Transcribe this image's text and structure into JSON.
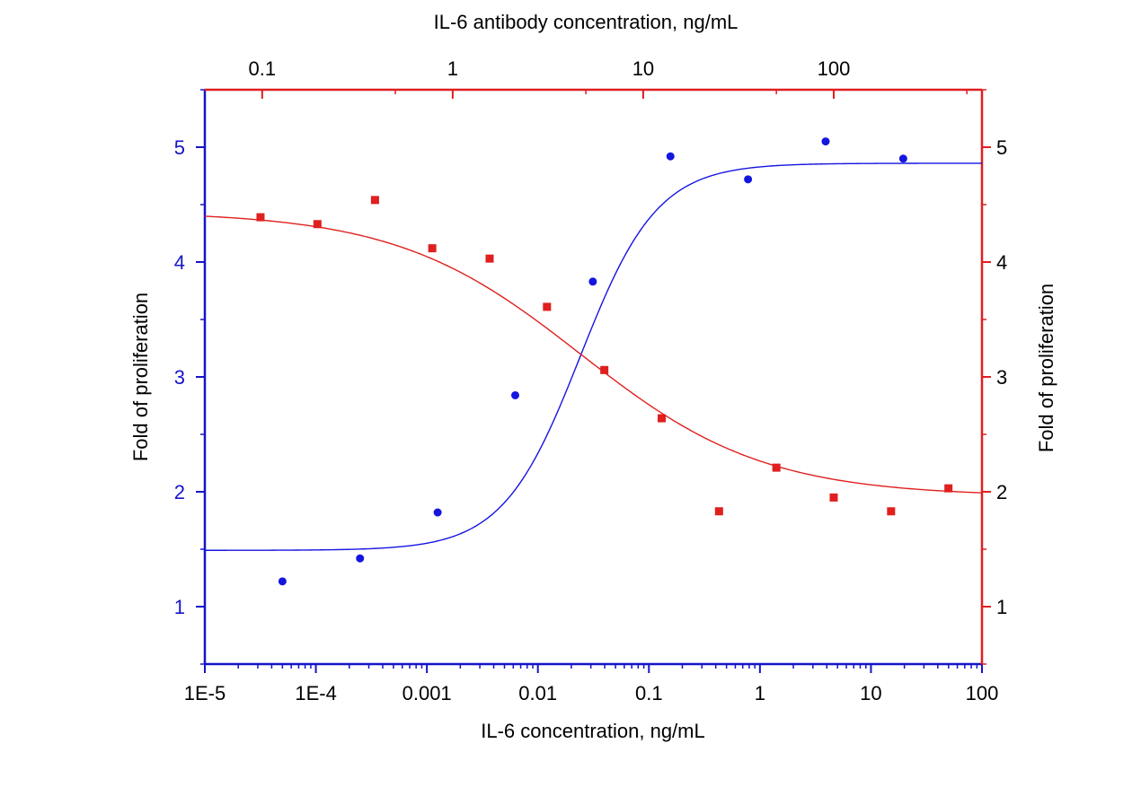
{
  "chart_data": {
    "type": "scatter",
    "x_bottom": {
      "label": "IL-6 concentration, ng/mL",
      "scale": "log",
      "range": [
        1e-05,
        100
      ],
      "tick_values": [
        1e-05,
        0.0001,
        0.001,
        0.01,
        0.1,
        1,
        10,
        100
      ],
      "tick_labels": [
        "1E-5",
        "1E-4",
        "0.001",
        "0.01",
        "0.1",
        "1",
        "10",
        "100"
      ],
      "color": "#1515c8"
    },
    "x_top": {
      "label": "IL-6 antibody concentration, ng/mL",
      "scale": "log",
      "range": [
        0.05,
        600
      ],
      "tick_values": [
        0.1,
        1,
        10,
        100
      ],
      "tick_labels": [
        "0.1",
        "1",
        "10",
        "100"
      ],
      "color": "#e01f1f"
    },
    "y_left": {
      "label": "Fold of proliferation",
      "range": [
        0.5,
        5.5
      ],
      "tick_values": [
        1,
        2,
        3,
        4,
        5
      ],
      "tick_labels": [
        "1",
        "2",
        "3",
        "4",
        "5"
      ],
      "color": "#1515c8"
    },
    "y_right": {
      "label": "Fold of proliferation",
      "range": [
        0.5,
        5.5
      ],
      "tick_values": [
        1,
        2,
        3,
        4,
        5
      ],
      "tick_labels": [
        "1",
        "2",
        "3",
        "4",
        "5"
      ],
      "color": "#e01f1f"
    },
    "grid": false,
    "legend": "none",
    "series": [
      {
        "axis_x": "bottom",
        "marker": "circle",
        "color": "#1515e0",
        "points": [
          {
            "x": 5e-05,
            "y": 1.22
          },
          {
            "x": 0.00025,
            "y": 1.42
          },
          {
            "x": 0.00125,
            "y": 1.82
          },
          {
            "x": 0.00625,
            "y": 2.84
          },
          {
            "x": 0.03125,
            "y": 3.83
          },
          {
            "x": 0.15625,
            "y": 4.92
          },
          {
            "x": 0.78125,
            "y": 4.72
          },
          {
            "x": 3.90625,
            "y": 5.05
          },
          {
            "x": 19.5313,
            "y": 4.9
          }
        ],
        "fit": {
          "bottom": 1.49,
          "top": 4.86,
          "log_ec50": -1.62,
          "hill": 1.25
        }
      },
      {
        "axis_x": "top",
        "marker": "square",
        "color": "#e01f1f",
        "points": [
          {
            "x": 0.098,
            "y": 4.39
          },
          {
            "x": 0.195,
            "y": 4.33
          },
          {
            "x": 0.391,
            "y": 4.54
          },
          {
            "x": 0.781,
            "y": 4.12
          },
          {
            "x": 1.5625,
            "y": 4.03
          },
          {
            "x": 3.125,
            "y": 3.61
          },
          {
            "x": 6.25,
            "y": 3.06
          },
          {
            "x": 12.5,
            "y": 2.64
          },
          {
            "x": 25,
            "y": 1.83
          },
          {
            "x": 50,
            "y": 2.21
          },
          {
            "x": 100,
            "y": 1.95
          },
          {
            "x": 200,
            "y": 1.83
          },
          {
            "x": 400,
            "y": 2.03
          }
        ],
        "fit": {
          "bottom": 1.96,
          "top": 4.44,
          "log_ec50": 0.67,
          "hill": -0.9
        }
      }
    ]
  }
}
